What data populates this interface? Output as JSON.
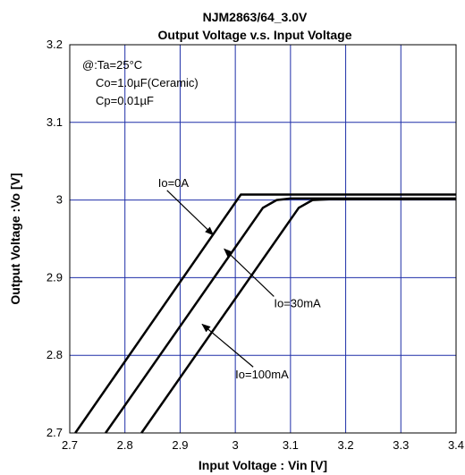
{
  "chart_data": {
    "type": "line",
    "title": "NJM2863/64_3.0V",
    "subtitle": "Output Voltage v.s. Input Voltage",
    "xlabel": "Input Voltage : Vin [V]",
    "ylabel": "Output Voltage :Vo [V]",
    "xlim": [
      2.7,
      3.4
    ],
    "ylim": [
      2.7,
      3.2
    ],
    "xticks": [
      "2.7",
      "2.8",
      "2.9",
      "3",
      "3.1",
      "3.2",
      "3.3",
      "3.4"
    ],
    "yticks": [
      "2.7",
      "2.8",
      "2.9",
      "3",
      "3.1",
      "3.2"
    ],
    "grid": true,
    "conditions": [
      "@:Ta=25°C",
      "Co=1.0µF(Ceramic)",
      "Cp=0.01µF"
    ],
    "series": [
      {
        "name": "Io=0A",
        "points": [
          [
            2.71,
            2.7
          ],
          [
            3.01,
            3.007
          ],
          [
            3.4,
            3.007
          ]
        ]
      },
      {
        "name": "Io=30mA",
        "points": [
          [
            2.765,
            2.7
          ],
          [
            3.05,
            2.99
          ],
          [
            3.075,
            3.0
          ],
          [
            3.1,
            3.002
          ],
          [
            3.4,
            3.002
          ]
        ]
      },
      {
        "name": "Io=100mA",
        "points": [
          [
            2.83,
            2.7
          ],
          [
            3.115,
            2.99
          ],
          [
            3.14,
            3.0
          ],
          [
            3.17,
            3.001
          ],
          [
            3.4,
            3.001
          ]
        ]
      }
    ],
    "annotations": [
      {
        "text": "Io=0A",
        "label_at": [
          2.86,
          3.017
        ],
        "arrow_to": [
          2.96,
          2.955
        ]
      },
      {
        "text": "Io=30mA",
        "label_at": [
          3.07,
          2.862
        ],
        "arrow_to": [
          2.98,
          2.937
        ]
      },
      {
        "text": "Io=100mA",
        "label_at": [
          3.0,
          2.77
        ],
        "arrow_to": [
          2.94,
          2.84
        ]
      }
    ]
  }
}
